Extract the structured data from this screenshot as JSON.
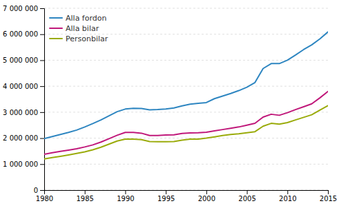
{
  "chart_data": {
    "type": "line",
    "x": [
      1980,
      1981,
      1982,
      1983,
      1984,
      1985,
      1986,
      1987,
      1988,
      1989,
      1990,
      1991,
      1992,
      1993,
      1994,
      1995,
      1996,
      1997,
      1998,
      1999,
      2000,
      2001,
      2002,
      2003,
      2004,
      2005,
      2006,
      2007,
      2008,
      2009,
      2010,
      2011,
      2012,
      2013,
      2014,
      2015
    ],
    "series": [
      {
        "name": "Alla fordon",
        "color": "#2E86C1",
        "values": [
          1980000,
          2060000,
          2140000,
          2220000,
          2310000,
          2430000,
          2560000,
          2700000,
          2860000,
          3020000,
          3120000,
          3150000,
          3140000,
          3090000,
          3100000,
          3120000,
          3160000,
          3240000,
          3310000,
          3340000,
          3370000,
          3520000,
          3620000,
          3720000,
          3830000,
          3960000,
          4140000,
          4680000,
          4870000,
          4870000,
          5000000,
          5200000,
          5410000,
          5590000,
          5820000,
          6090000
        ]
      },
      {
        "name": "Alla bilar",
        "color": "#C0187A",
        "values": [
          1380000,
          1440000,
          1490000,
          1540000,
          1590000,
          1660000,
          1740000,
          1850000,
          1980000,
          2110000,
          2220000,
          2220000,
          2190000,
          2100000,
          2100000,
          2120000,
          2130000,
          2180000,
          2200000,
          2210000,
          2230000,
          2280000,
          2330000,
          2380000,
          2430000,
          2500000,
          2570000,
          2810000,
          2920000,
          2880000,
          2980000,
          3100000,
          3210000,
          3320000,
          3550000,
          3800000
        ]
      },
      {
        "name": "Personbilar",
        "color": "#9AAB0A",
        "values": [
          1200000,
          1250000,
          1300000,
          1355000,
          1410000,
          1470000,
          1550000,
          1650000,
          1770000,
          1890000,
          1960000,
          1960000,
          1940000,
          1870000,
          1860000,
          1860000,
          1870000,
          1920000,
          1960000,
          1960000,
          2000000,
          2050000,
          2100000,
          2140000,
          2170000,
          2210000,
          2250000,
          2460000,
          2570000,
          2540000,
          2600000,
          2700000,
          2800000,
          2900000,
          3080000,
          3250000
        ]
      }
    ],
    "xlim": [
      1980,
      2015
    ],
    "xticks": [
      1980,
      1985,
      1990,
      1995,
      2000,
      2005,
      2010,
      2015
    ],
    "ylim": [
      0,
      7000000
    ],
    "yticks": [
      0,
      {
        "value": 1000000,
        "label": "1 000 000"
      },
      {
        "value": 2000000,
        "label": "2 000 000"
      },
      {
        "value": 3000000,
        "label": "3 000 000"
      },
      {
        "value": 4000000,
        "label": "4 000 000"
      },
      {
        "value": 5000000,
        "label": "5 000 000"
      },
      {
        "value": 6000000,
        "label": "6 000 000"
      },
      {
        "value": 7000000,
        "label": "7 000 000"
      }
    ],
    "grid": true,
    "legend": "upper left"
  }
}
